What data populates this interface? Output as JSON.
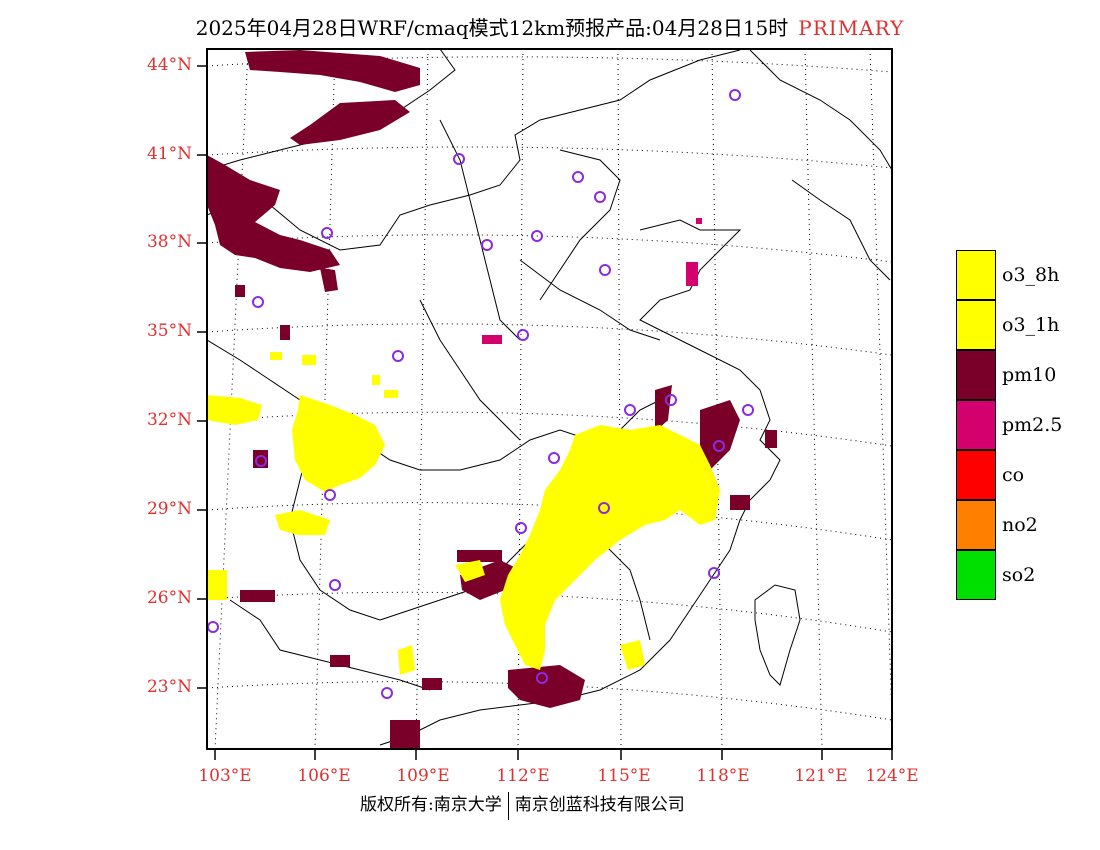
{
  "header": {
    "title": "2025年04月28日WRF/cmaq模式12km预报产品:04月28日15时",
    "tag": "PRIMARY"
  },
  "map": {
    "lat_labels": [
      "44°N",
      "41°N",
      "38°N",
      "35°N",
      "32°N",
      "29°N",
      "26°N",
      "23°N"
    ],
    "lon_labels": [
      "103°E",
      "106°E",
      "109°E",
      "112°E",
      "115°E",
      "118°E",
      "121°E",
      "124°E"
    ]
  },
  "legend": {
    "items": [
      {
        "label": "o3_8h",
        "color": "#ffff00"
      },
      {
        "label": "o3_1h",
        "color": "#ffff00"
      },
      {
        "label": "pm10",
        "color": "#7a0029"
      },
      {
        "label": "pm2.5",
        "color": "#d4006e"
      },
      {
        "label": "co",
        "color": "#ff0000"
      },
      {
        "label": "no2",
        "color": "#ff8000"
      },
      {
        "label": "so2",
        "color": "#00e000"
      }
    ]
  },
  "footer": {
    "left": "版权所有:南京大学",
    "right": "南京创蓝科技有限公司"
  },
  "colors": {
    "label_red": "#e03030",
    "site_marker": "#8a2be2"
  }
}
